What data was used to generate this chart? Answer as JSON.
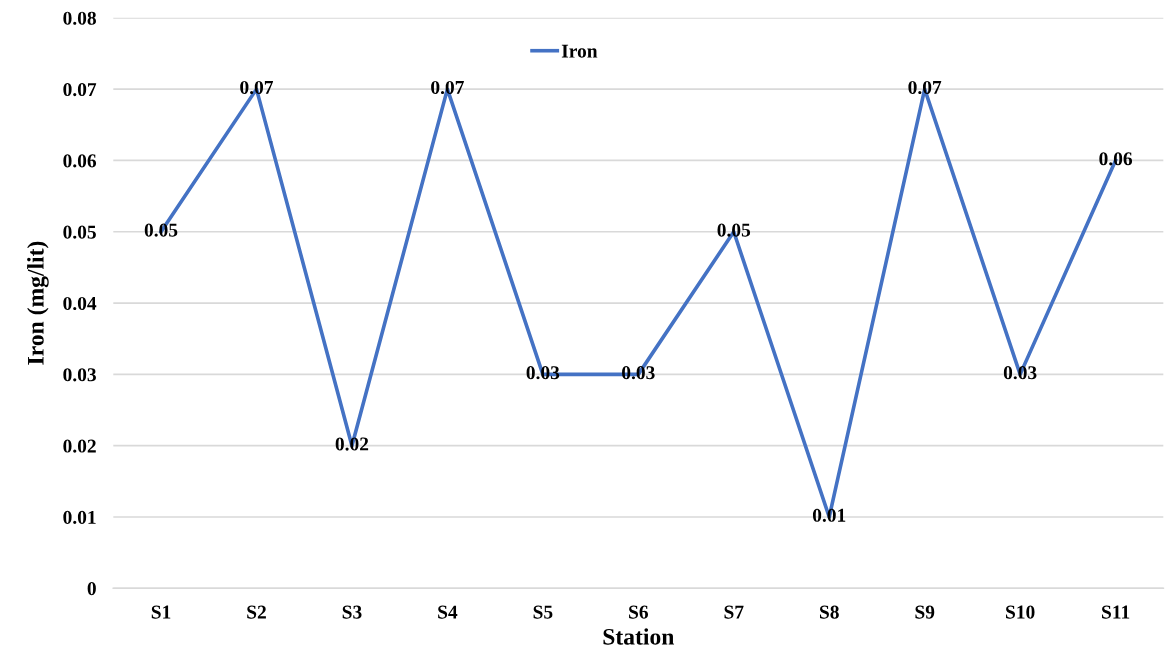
{
  "chart_data": {
    "type": "line",
    "xlabel": "Station",
    "ylabel": "Iron (mg/lit)",
    "categories": [
      "S1",
      "S2",
      "S3",
      "S4",
      "S5",
      "S6",
      "S7",
      "S8",
      "S9",
      "S10",
      "S11"
    ],
    "series": [
      {
        "name": "Iron",
        "color": "#4472c4",
        "values": [
          0.05,
          0.07,
          0.02,
          0.07,
          0.03,
          0.03,
          0.05,
          0.01,
          0.07,
          0.03,
          0.06
        ]
      }
    ],
    "ylim": [
      0,
      0.08
    ],
    "yticks": [
      0,
      0.01,
      0.02,
      0.03,
      0.04,
      0.05,
      0.06,
      0.07,
      0.08
    ],
    "grid": "y",
    "legend": "top",
    "data_labels": true,
    "line_style": "solid"
  }
}
